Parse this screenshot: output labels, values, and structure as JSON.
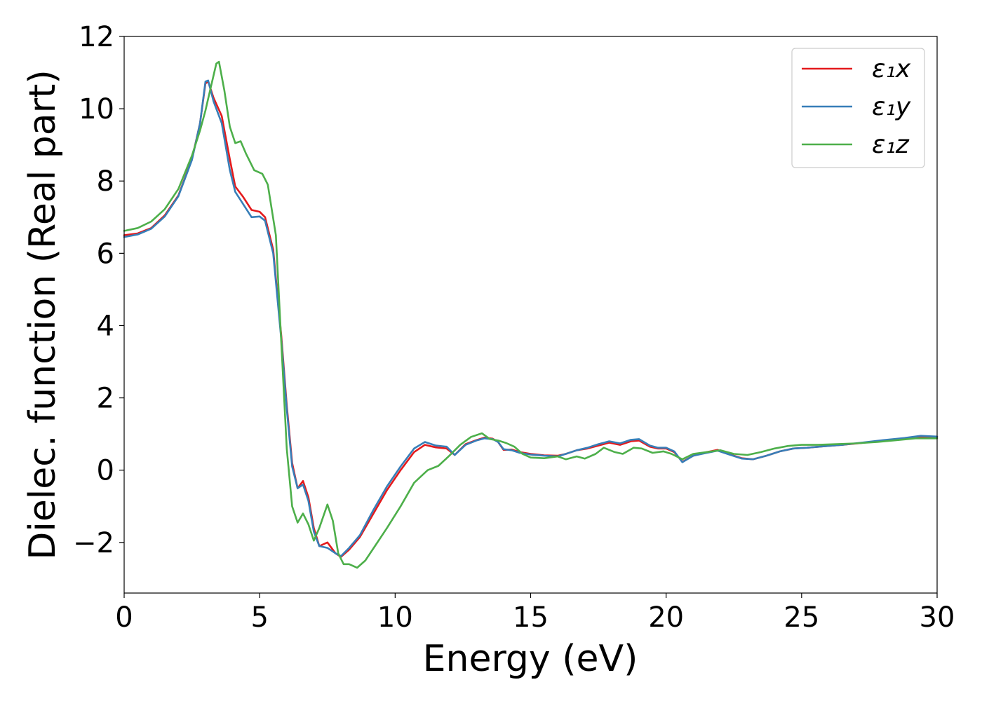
{
  "chart_data": {
    "type": "line",
    "title": "",
    "xlabel": "Energy (eV)",
    "ylabel": "Dielec. function (Real part)",
    "xlim": [
      0,
      30
    ],
    "ylim": [
      -3.4,
      12
    ],
    "xticks": [
      0,
      5,
      10,
      15,
      20,
      25,
      30
    ],
    "yticks": [
      -2,
      0,
      2,
      4,
      6,
      8,
      10,
      12
    ],
    "xtick_labels": [
      "0",
      "5",
      "10",
      "15",
      "20",
      "25",
      "30"
    ],
    "ytick_labels": [
      "−2",
      "0",
      "2",
      "4",
      "6",
      "8",
      "10",
      "12"
    ],
    "grid": false,
    "legend_position": "top-right",
    "legend_labels": [
      "ε₁x",
      "ε₁y",
      "ε₁z"
    ],
    "series": [
      {
        "name": "ε₁x",
        "color": "#e41a1c",
        "points": [
          [
            0,
            6.5
          ],
          [
            0.5,
            6.55
          ],
          [
            1,
            6.7
          ],
          [
            1.5,
            7.05
          ],
          [
            2,
            7.6
          ],
          [
            2.5,
            8.6
          ],
          [
            2.8,
            9.6
          ],
          [
            3.0,
            10.7
          ],
          [
            3.1,
            10.75
          ],
          [
            3.3,
            10.3
          ],
          [
            3.6,
            9.8
          ],
          [
            3.9,
            8.6
          ],
          [
            4.1,
            7.85
          ],
          [
            4.4,
            7.55
          ],
          [
            4.7,
            7.2
          ],
          [
            5.0,
            7.15
          ],
          [
            5.2,
            7.0
          ],
          [
            5.5,
            6.1
          ],
          [
            5.8,
            3.7
          ],
          [
            6.0,
            1.8
          ],
          [
            6.2,
            0.2
          ],
          [
            6.4,
            -0.5
          ],
          [
            6.6,
            -0.3
          ],
          [
            6.8,
            -0.75
          ],
          [
            7.0,
            -1.6
          ],
          [
            7.2,
            -2.1
          ],
          [
            7.5,
            -2.0
          ],
          [
            7.8,
            -2.3
          ],
          [
            8.0,
            -2.4
          ],
          [
            8.3,
            -2.2
          ],
          [
            8.7,
            -1.85
          ],
          [
            9.2,
            -1.2
          ],
          [
            9.7,
            -0.55
          ],
          [
            10.2,
            0.0
          ],
          [
            10.7,
            0.5
          ],
          [
            11.1,
            0.7
          ],
          [
            11.5,
            0.63
          ],
          [
            11.9,
            0.6
          ],
          [
            12.2,
            0.42
          ],
          [
            12.6,
            0.72
          ],
          [
            13.0,
            0.83
          ],
          [
            13.3,
            0.9
          ],
          [
            13.6,
            0.87
          ],
          [
            13.8,
            0.78
          ],
          [
            14.0,
            0.56
          ],
          [
            14.3,
            0.57
          ],
          [
            14.6,
            0.5
          ],
          [
            15.0,
            0.45
          ],
          [
            15.5,
            0.41
          ],
          [
            16.0,
            0.4
          ],
          [
            16.3,
            0.45
          ],
          [
            16.7,
            0.55
          ],
          [
            17.1,
            0.6
          ],
          [
            17.5,
            0.68
          ],
          [
            17.9,
            0.76
          ],
          [
            18.3,
            0.7
          ],
          [
            18.7,
            0.8
          ],
          [
            19.0,
            0.82
          ],
          [
            19.4,
            0.65
          ],
          [
            19.7,
            0.6
          ],
          [
            20.0,
            0.6
          ],
          [
            20.3,
            0.5
          ],
          [
            20.6,
            0.23
          ],
          [
            21.0,
            0.4
          ],
          [
            21.5,
            0.5
          ],
          [
            21.9,
            0.56
          ],
          [
            22.3,
            0.45
          ],
          [
            22.8,
            0.33
          ],
          [
            23.2,
            0.3
          ],
          [
            23.7,
            0.4
          ],
          [
            24.2,
            0.52
          ],
          [
            24.7,
            0.6
          ],
          [
            25.2,
            0.62
          ],
          [
            25.8,
            0.66
          ],
          [
            26.5,
            0.7
          ],
          [
            27.2,
            0.75
          ],
          [
            28.0,
            0.82
          ],
          [
            28.8,
            0.88
          ],
          [
            29.4,
            0.93
          ],
          [
            30,
            0.92
          ]
        ]
      },
      {
        "name": "ε₁y",
        "color": "#377eb8",
        "points": [
          [
            0,
            6.45
          ],
          [
            0.5,
            6.52
          ],
          [
            1,
            6.68
          ],
          [
            1.5,
            7.02
          ],
          [
            2,
            7.58
          ],
          [
            2.5,
            8.58
          ],
          [
            2.8,
            9.6
          ],
          [
            3.0,
            10.75
          ],
          [
            3.1,
            10.78
          ],
          [
            3.3,
            10.2
          ],
          [
            3.6,
            9.6
          ],
          [
            3.9,
            8.3
          ],
          [
            4.1,
            7.7
          ],
          [
            4.4,
            7.35
          ],
          [
            4.7,
            7.0
          ],
          [
            5.0,
            7.02
          ],
          [
            5.2,
            6.9
          ],
          [
            5.5,
            6.0
          ],
          [
            5.8,
            3.6
          ],
          [
            6.0,
            1.7
          ],
          [
            6.2,
            0.1
          ],
          [
            6.4,
            -0.5
          ],
          [
            6.6,
            -0.4
          ],
          [
            6.8,
            -0.85
          ],
          [
            7.0,
            -1.7
          ],
          [
            7.2,
            -2.1
          ],
          [
            7.5,
            -2.15
          ],
          [
            7.8,
            -2.3
          ],
          [
            8.0,
            -2.38
          ],
          [
            8.3,
            -2.15
          ],
          [
            8.7,
            -1.8
          ],
          [
            9.2,
            -1.1
          ],
          [
            9.7,
            -0.45
          ],
          [
            10.2,
            0.1
          ],
          [
            10.7,
            0.6
          ],
          [
            11.1,
            0.78
          ],
          [
            11.5,
            0.68
          ],
          [
            11.9,
            0.65
          ],
          [
            12.2,
            0.42
          ],
          [
            12.6,
            0.7
          ],
          [
            13.0,
            0.82
          ],
          [
            13.3,
            0.88
          ],
          [
            13.6,
            0.86
          ],
          [
            13.8,
            0.78
          ],
          [
            14.0,
            0.58
          ],
          [
            14.3,
            0.55
          ],
          [
            14.6,
            0.48
          ],
          [
            15.0,
            0.43
          ],
          [
            15.5,
            0.4
          ],
          [
            16.0,
            0.38
          ],
          [
            16.3,
            0.45
          ],
          [
            16.7,
            0.55
          ],
          [
            17.1,
            0.62
          ],
          [
            17.5,
            0.72
          ],
          [
            17.9,
            0.8
          ],
          [
            18.3,
            0.74
          ],
          [
            18.7,
            0.84
          ],
          [
            19.0,
            0.86
          ],
          [
            19.4,
            0.68
          ],
          [
            19.7,
            0.62
          ],
          [
            20.0,
            0.62
          ],
          [
            20.3,
            0.52
          ],
          [
            20.6,
            0.22
          ],
          [
            21.0,
            0.4
          ],
          [
            21.5,
            0.48
          ],
          [
            21.9,
            0.54
          ],
          [
            22.3,
            0.44
          ],
          [
            22.8,
            0.32
          ],
          [
            23.2,
            0.3
          ],
          [
            23.7,
            0.4
          ],
          [
            24.2,
            0.52
          ],
          [
            24.7,
            0.6
          ],
          [
            25.2,
            0.62
          ],
          [
            25.8,
            0.66
          ],
          [
            26.5,
            0.7
          ],
          [
            27.2,
            0.76
          ],
          [
            28.0,
            0.83
          ],
          [
            28.8,
            0.89
          ],
          [
            29.4,
            0.95
          ],
          [
            30,
            0.93
          ]
        ]
      },
      {
        "name": "ε₁z",
        "color": "#4daf4a",
        "points": [
          [
            0,
            6.62
          ],
          [
            0.5,
            6.7
          ],
          [
            1,
            6.88
          ],
          [
            1.5,
            7.22
          ],
          [
            2,
            7.78
          ],
          [
            2.5,
            8.7
          ],
          [
            2.8,
            9.4
          ],
          [
            3.0,
            9.95
          ],
          [
            3.2,
            10.6
          ],
          [
            3.4,
            11.25
          ],
          [
            3.5,
            11.3
          ],
          [
            3.7,
            10.5
          ],
          [
            3.9,
            9.5
          ],
          [
            4.1,
            9.05
          ],
          [
            4.3,
            9.1
          ],
          [
            4.5,
            8.75
          ],
          [
            4.8,
            8.3
          ],
          [
            5.1,
            8.2
          ],
          [
            5.3,
            7.9
          ],
          [
            5.6,
            6.5
          ],
          [
            5.8,
            3.5
          ],
          [
            6.0,
            0.6
          ],
          [
            6.2,
            -1.0
          ],
          [
            6.4,
            -1.45
          ],
          [
            6.6,
            -1.2
          ],
          [
            6.8,
            -1.5
          ],
          [
            7.0,
            -1.95
          ],
          [
            7.2,
            -1.6
          ],
          [
            7.5,
            -0.95
          ],
          [
            7.7,
            -1.4
          ],
          [
            7.9,
            -2.3
          ],
          [
            8.1,
            -2.6
          ],
          [
            8.3,
            -2.6
          ],
          [
            8.6,
            -2.7
          ],
          [
            8.9,
            -2.5
          ],
          [
            9.3,
            -2.05
          ],
          [
            9.7,
            -1.6
          ],
          [
            10.2,
            -1.0
          ],
          [
            10.7,
            -0.35
          ],
          [
            11.2,
            0.0
          ],
          [
            11.6,
            0.12
          ],
          [
            12.0,
            0.4
          ],
          [
            12.4,
            0.7
          ],
          [
            12.8,
            0.92
          ],
          [
            13.2,
            1.02
          ],
          [
            13.5,
            0.86
          ],
          [
            13.8,
            0.82
          ],
          [
            14.1,
            0.75
          ],
          [
            14.4,
            0.65
          ],
          [
            14.7,
            0.45
          ],
          [
            15.0,
            0.35
          ],
          [
            15.5,
            0.33
          ],
          [
            16.0,
            0.38
          ],
          [
            16.3,
            0.3
          ],
          [
            16.7,
            0.38
          ],
          [
            17.0,
            0.32
          ],
          [
            17.4,
            0.45
          ],
          [
            17.7,
            0.62
          ],
          [
            18.1,
            0.5
          ],
          [
            18.4,
            0.45
          ],
          [
            18.8,
            0.62
          ],
          [
            19.1,
            0.6
          ],
          [
            19.5,
            0.48
          ],
          [
            19.9,
            0.52
          ],
          [
            20.2,
            0.45
          ],
          [
            20.6,
            0.3
          ],
          [
            21.0,
            0.45
          ],
          [
            21.5,
            0.5
          ],
          [
            22.0,
            0.55
          ],
          [
            22.5,
            0.45
          ],
          [
            23.0,
            0.42
          ],
          [
            23.5,
            0.5
          ],
          [
            24.0,
            0.6
          ],
          [
            24.5,
            0.67
          ],
          [
            25.0,
            0.7
          ],
          [
            25.6,
            0.7
          ],
          [
            26.3,
            0.72
          ],
          [
            27.0,
            0.74
          ],
          [
            27.8,
            0.78
          ],
          [
            28.5,
            0.83
          ],
          [
            29.2,
            0.88
          ],
          [
            30,
            0.88
          ]
        ]
      }
    ]
  }
}
